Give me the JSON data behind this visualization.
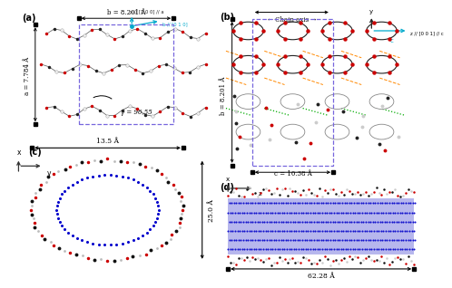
{
  "bg_color": "#ffffff",
  "panel_a": {
    "label": "(a)",
    "b_label": "b = 8.201 Å",
    "a_label": "a = 7.784 Å",
    "gamma_label": "γ = 96,55",
    "axis_x_label": "x // [1 0 0] // a",
    "axis_y_label": "b // [0 1 0]",
    "dashed_box_color": "#7766DD"
  },
  "panel_b": {
    "label": "(b)",
    "b_label": "b = 8.201 Å",
    "c_label": "c = 10.38 Å",
    "chain_axis_label": "← Chain axis →",
    "axis_y_label": "y",
    "axis_z_label": "z // [0 0 1] // c",
    "c_axis_label": "c",
    "dashed_box_color": "#7766DD"
  },
  "panel_c": {
    "label": "(c)",
    "d_label": "13.5 Å",
    "h_label": "25.0 Å",
    "axis_x_label": "x",
    "axis_y_label": "y",
    "inner_color": "#0000cc"
  },
  "panel_d": {
    "label": "(d)",
    "length_label": "62.28 Å",
    "axis_x_label": "x",
    "axis_z_label": "z"
  }
}
